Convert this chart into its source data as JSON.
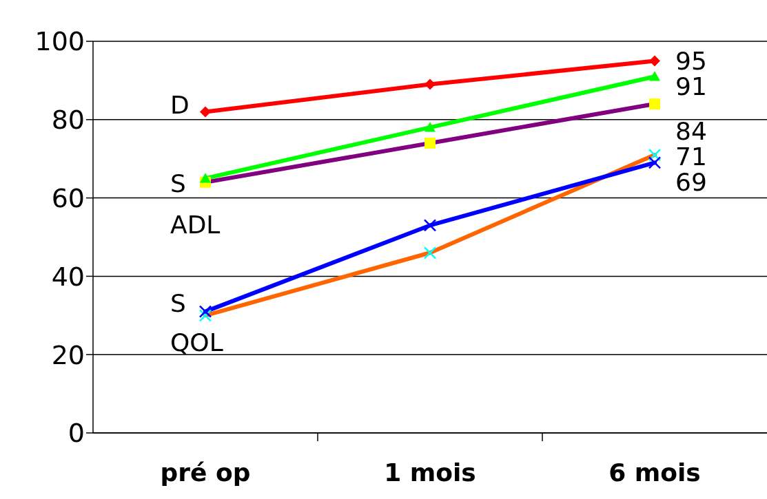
{
  "chart_data": {
    "type": "line",
    "categories": [
      "pré op",
      "1 mois",
      "6 mois"
    ],
    "series": [
      {
        "color": "#ff0000",
        "colors": [
          "#ff0000",
          "#ff0000",
          "#ff0000"
        ],
        "marker": "diamond",
        "values": [
          82,
          89,
          95
        ],
        "value_labels": [
          null,
          null,
          "95"
        ]
      },
      {
        "color": "#00ff00",
        "colors": [
          "#00ff00",
          "#00ff00",
          "#00ff00"
        ],
        "marker": "triangle",
        "values": [
          65,
          78,
          91
        ],
        "value_labels": [
          null,
          null,
          "91"
        ]
      },
      {
        "color": "#800080",
        "colors": [
          "#ffff00",
          "#ffff00",
          "#ffff00"
        ],
        "marker": "square",
        "values": [
          64,
          74,
          84
        ],
        "value_labels": [
          null,
          null,
          "84"
        ]
      },
      {
        "color": "#0000ff",
        "colors": [
          "#0000ff",
          "#0000ff",
          "#0000ff"
        ],
        "marker": "cross",
        "values": [
          31,
          53,
          69
        ],
        "value_labels": [
          null,
          null,
          "69"
        ]
      },
      {
        "color": "#ff6600",
        "colors": [
          "#00ffff",
          "#00ffff",
          "#00ffff"
        ],
        "marker": "cross",
        "values": [
          30,
          46,
          71
        ],
        "value_labels": [
          null,
          null,
          "71"
        ]
      }
    ],
    "annotations": [
      "D",
      "S",
      "ADL",
      "S",
      "QOL"
    ],
    "ylim": [
      0,
      100
    ],
    "yticks": [
      0,
      20,
      40,
      60,
      80,
      100
    ],
    "grid": "y",
    "legend": false,
    "line_style": "solid"
  }
}
